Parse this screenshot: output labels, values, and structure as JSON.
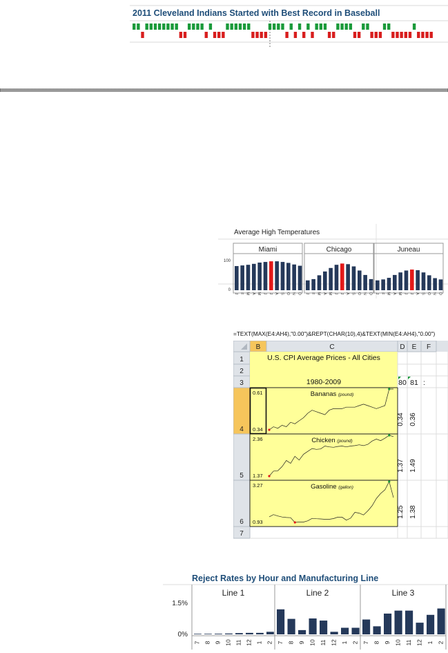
{
  "baseball": {
    "title": "2011 Cleveland Indians Started with Best Record in Baseball",
    "colors": {
      "win": "#1a9a3a",
      "loss": "#d81e1e"
    },
    "chart_data": {
      "type": "bar",
      "title": "2011 Cleveland Indians Started with Best Record in Baseball",
      "results": [
        1,
        1,
        0,
        1,
        1,
        1,
        1,
        1,
        1,
        1,
        1,
        0,
        0,
        1,
        1,
        1,
        1,
        0,
        1,
        0,
        0,
        0,
        1,
        1,
        1,
        1,
        1,
        1,
        0,
        0,
        0,
        0,
        1,
        1,
        1,
        1,
        0,
        1,
        0,
        1,
        0,
        1,
        0,
        1,
        1,
        1,
        0,
        0,
        1,
        1,
        1,
        1,
        0,
        0,
        1,
        1,
        0,
        0,
        0,
        1,
        1,
        0,
        0,
        0,
        0,
        0,
        1,
        0,
        0,
        0,
        0
      ]
    }
  },
  "temps": {
    "title": "Average High Temperatures",
    "colors": {
      "bar": "#25395a",
      "highlight": "#e31919"
    },
    "chart_data": {
      "type": "bar",
      "title": "Average High Temperatures",
      "ylim": [
        0,
        100
      ],
      "y_ticks": [
        "100",
        "0"
      ],
      "month_letters": [
        "J",
        "F",
        "M",
        "A",
        "M",
        "J",
        "J",
        "A",
        "S",
        "O",
        "N",
        "D"
      ],
      "panels": [
        {
          "name": "Miami",
          "values": [
            76,
            78,
            80,
            83,
            87,
            89,
            91,
            91,
            89,
            86,
            81,
            77
          ],
          "highlight": 6
        },
        {
          "name": "Chicago",
          "values": [
            31,
            35,
            47,
            59,
            70,
            80,
            84,
            82,
            75,
            62,
            48,
            35
          ],
          "highlight": 6
        },
        {
          "name": "Juneau",
          "values": [
            31,
            34,
            39,
            48,
            56,
            62,
            65,
            63,
            56,
            47,
            38,
            34
          ],
          "highlight": 6
        }
      ]
    }
  },
  "cpi": {
    "formula": "=TEXT(MAX(E4:AH4),\"0.00\")&REPT(CHAR(10),4)&TEXT(MIN(E4:AH4),\"0.00\")",
    "columns": [
      "B",
      "C",
      "D",
      "E",
      "F"
    ],
    "rows": [
      "1",
      "2",
      "3",
      "4",
      "5",
      "6",
      "7"
    ],
    "title": "U.S. CPI Average Prices - All Cities",
    "subtitle": "1980-2009",
    "year_cols": [
      "80",
      "81"
    ],
    "colors": {
      "line": "#222222",
      "min": "#e31919",
      "max": "#1a9a3a",
      "fill": "#ffff99"
    },
    "chart_data": {
      "type": "line",
      "x": [
        1980,
        1981,
        1982,
        1983,
        1984,
        1985,
        1986,
        1987,
        1988,
        1989,
        1990,
        1991,
        1992,
        1993,
        1994,
        1995,
        1996,
        1997,
        1998,
        1999,
        2000,
        2001,
        2002,
        2003,
        2004,
        2005,
        2006,
        2007,
        2008,
        2009
      ],
      "series": [
        {
          "name": "Bananas",
          "unit": "(pound)",
          "max_label": "0.61",
          "min_label": "0.34",
          "col_e": "0.34",
          "col_f": "0.36",
          "values": [
            0.34,
            0.36,
            0.35,
            0.37,
            0.36,
            0.39,
            0.38,
            0.4,
            0.42,
            0.45,
            0.47,
            0.46,
            0.45,
            0.44,
            0.47,
            0.48,
            0.48,
            0.48,
            0.49,
            0.49,
            0.49,
            0.5,
            0.51,
            0.5,
            0.49,
            0.48,
            0.49,
            0.5,
            0.61,
            0.61
          ]
        },
        {
          "name": "Chicken",
          "unit": "(pound)",
          "max_label": "2.36",
          "min_label": "1.37",
          "col_e": "1.37",
          "col_f": "1.49",
          "values": [
            1.37,
            1.49,
            1.5,
            1.6,
            1.75,
            1.68,
            1.85,
            1.76,
            1.9,
            1.97,
            2.04,
            2.02,
            2.03,
            2.1,
            2.08,
            2.07,
            2.09,
            2.1,
            2.08,
            2.1,
            2.11,
            2.13,
            2.11,
            2.14,
            2.22,
            2.27,
            2.23,
            2.29,
            2.36,
            2.33
          ]
        },
        {
          "name": "Gasoline",
          "unit": "(gallon)",
          "max_label": "3.27",
          "min_label": "0.93",
          "col_e": "1.25",
          "col_f": "1.38",
          "values": [
            1.25,
            1.38,
            1.3,
            1.24,
            1.21,
            1.2,
            0.93,
            0.95,
            0.95,
            1.02,
            1.16,
            1.14,
            1.13,
            1.11,
            1.11,
            1.15,
            1.23,
            1.23,
            1.06,
            1.17,
            1.51,
            1.46,
            1.36,
            1.59,
            1.88,
            2.3,
            2.59,
            2.8,
            3.27,
            2.35
          ]
        }
      ]
    }
  },
  "reject": {
    "title": "Reject Rates by Hour and Manufacturing Line",
    "colors": {
      "bar": "#25395a"
    },
    "chart_data": {
      "type": "bar",
      "title": "Reject Rates by Hour and Manufacturing Line",
      "ylim": [
        0,
        1.5
      ],
      "y_ticks": [
        "1.5%",
        "0%"
      ],
      "hours": [
        "7",
        "8",
        "9",
        "10",
        "11",
        "12",
        "1",
        "2"
      ],
      "panels": [
        {
          "name": "Line 1",
          "values": [
            0.02,
            0.02,
            0.03,
            0.04,
            0.06,
            0.07,
            0.07,
            0.12
          ]
        },
        {
          "name": "Line 2",
          "values": [
            1.18,
            0.73,
            0.2,
            0.75,
            0.65,
            0.12,
            0.31,
            0.31
          ]
        },
        {
          "name": "Line 3",
          "values": [
            0.7,
            0.38,
            0.98,
            1.12,
            1.12,
            0.55,
            0.92,
            1.22
          ]
        }
      ]
    }
  }
}
